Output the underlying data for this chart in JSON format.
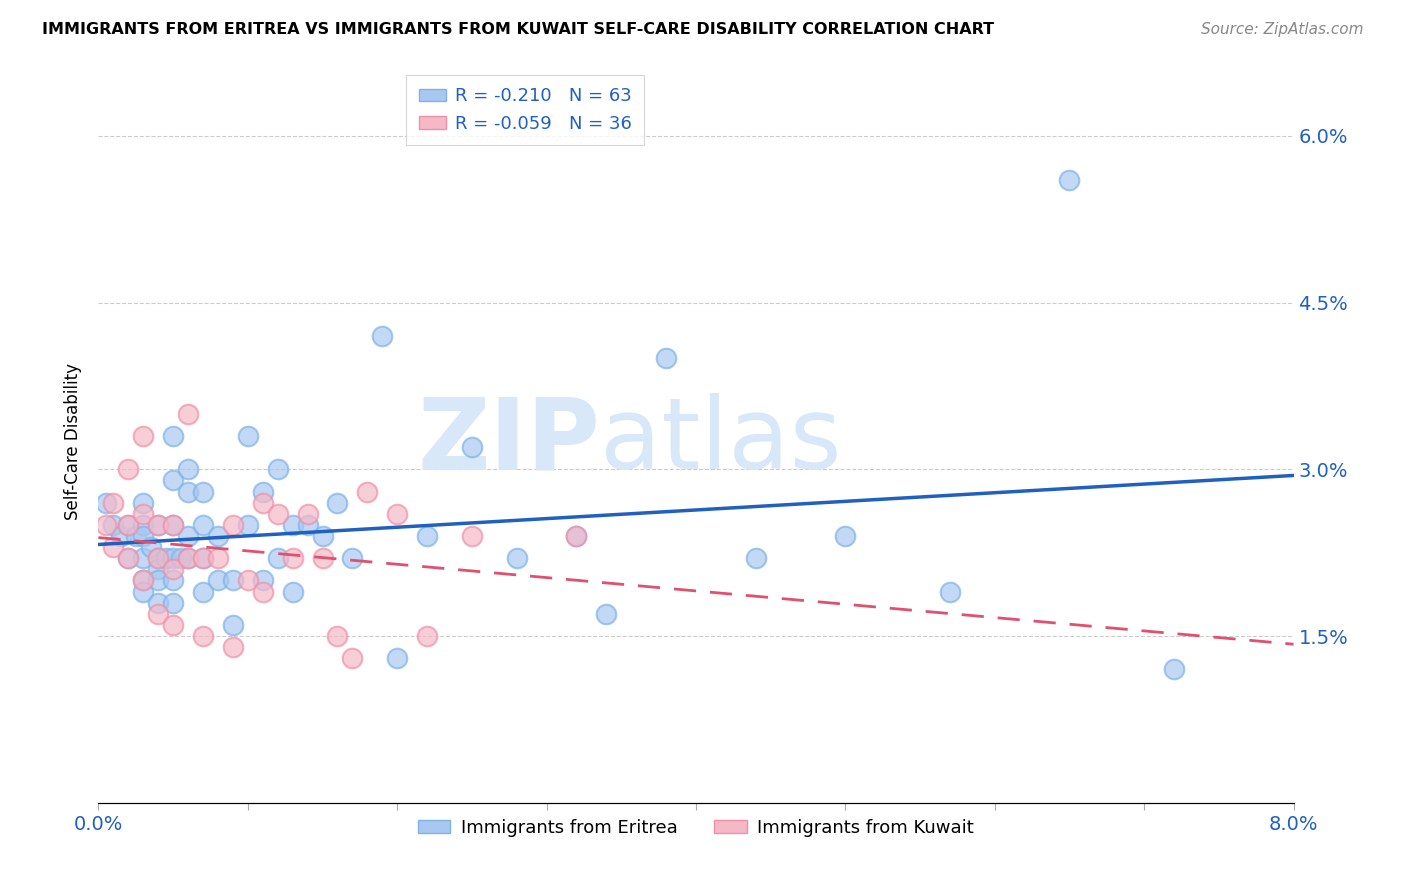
{
  "title": "IMMIGRANTS FROM ERITREA VS IMMIGRANTS FROM KUWAIT SELF-CARE DISABILITY CORRELATION CHART",
  "source": "Source: ZipAtlas.com",
  "xlabel_label": "Immigrants from Eritrea",
  "ylabel_label": "Self-Care Disability",
  "xlabel2_label": "Immigrants from Kuwait",
  "x_min": 0.0,
  "x_max": 0.08,
  "y_min": 0.0,
  "y_max": 0.065,
  "x_ticks": [
    0.0,
    0.01,
    0.02,
    0.03,
    0.04,
    0.05,
    0.06,
    0.07,
    0.08
  ],
  "y_ticks": [
    0.0,
    0.015,
    0.03,
    0.045,
    0.06
  ],
  "y_tick_labels": [
    "",
    "1.5%",
    "3.0%",
    "4.5%",
    "6.0%"
  ],
  "blue_color": "#A8C8F0",
  "blue_edge_color": "#7EB3E8",
  "pink_color": "#F5B8C8",
  "pink_edge_color": "#F090A8",
  "blue_line_color": "#2060C0",
  "pink_line_color": "#E05070",
  "grid_color": "#CCCCCC",
  "watermark_color": "#D8E8F8",
  "legend_R1": "-0.210",
  "legend_N1": "63",
  "legend_R2": "-0.059",
  "legend_N2": "36",
  "blue_x": [
    0.0005,
    0.001,
    0.0015,
    0.002,
    0.002,
    0.0025,
    0.003,
    0.003,
    0.003,
    0.003,
    0.003,
    0.003,
    0.0035,
    0.004,
    0.004,
    0.004,
    0.004,
    0.004,
    0.0045,
    0.005,
    0.005,
    0.005,
    0.005,
    0.005,
    0.005,
    0.0055,
    0.006,
    0.006,
    0.006,
    0.006,
    0.007,
    0.007,
    0.007,
    0.007,
    0.008,
    0.008,
    0.009,
    0.009,
    0.01,
    0.01,
    0.011,
    0.011,
    0.012,
    0.012,
    0.013,
    0.013,
    0.014,
    0.015,
    0.016,
    0.017,
    0.019,
    0.02,
    0.022,
    0.025,
    0.028,
    0.032,
    0.034,
    0.038,
    0.044,
    0.05,
    0.057,
    0.065,
    0.072
  ],
  "blue_y": [
    0.027,
    0.025,
    0.024,
    0.025,
    0.022,
    0.024,
    0.027,
    0.025,
    0.024,
    0.022,
    0.02,
    0.019,
    0.023,
    0.025,
    0.022,
    0.021,
    0.02,
    0.018,
    0.022,
    0.033,
    0.029,
    0.025,
    0.022,
    0.02,
    0.018,
    0.022,
    0.03,
    0.028,
    0.024,
    0.022,
    0.028,
    0.025,
    0.022,
    0.019,
    0.024,
    0.02,
    0.02,
    0.016,
    0.033,
    0.025,
    0.028,
    0.02,
    0.03,
    0.022,
    0.025,
    0.019,
    0.025,
    0.024,
    0.027,
    0.022,
    0.042,
    0.013,
    0.024,
    0.032,
    0.022,
    0.024,
    0.017,
    0.04,
    0.022,
    0.024,
    0.019,
    0.056,
    0.012
  ],
  "pink_x": [
    0.0005,
    0.001,
    0.001,
    0.002,
    0.002,
    0.002,
    0.003,
    0.003,
    0.003,
    0.004,
    0.004,
    0.004,
    0.005,
    0.005,
    0.005,
    0.006,
    0.006,
    0.007,
    0.007,
    0.008,
    0.009,
    0.009,
    0.01,
    0.011,
    0.011,
    0.012,
    0.013,
    0.014,
    0.015,
    0.016,
    0.017,
    0.018,
    0.02,
    0.022,
    0.025,
    0.032
  ],
  "pink_y": [
    0.025,
    0.027,
    0.023,
    0.03,
    0.025,
    0.022,
    0.033,
    0.026,
    0.02,
    0.025,
    0.022,
    0.017,
    0.025,
    0.021,
    0.016,
    0.035,
    0.022,
    0.022,
    0.015,
    0.022,
    0.025,
    0.014,
    0.02,
    0.027,
    0.019,
    0.026,
    0.022,
    0.026,
    0.022,
    0.015,
    0.013,
    0.028,
    0.026,
    0.015,
    0.024,
    0.024
  ]
}
